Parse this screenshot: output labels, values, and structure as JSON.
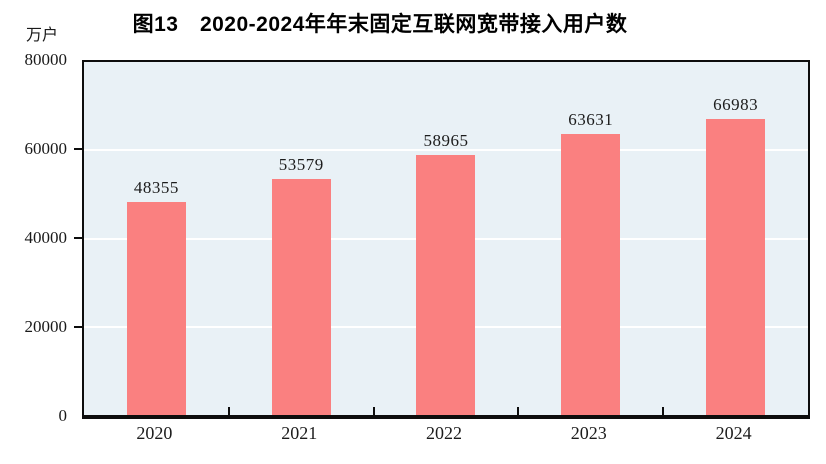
{
  "title": "图13　2020-2024年年末固定互联网宽带接入用户数",
  "unit_label": "万户",
  "colors": {
    "bar": "#FA8080",
    "plot_background": "#E9F1F6",
    "gridline": "#FFFFFF",
    "axis": "#0D0D0D",
    "text": "#1A1A1A"
  },
  "y_axis": {
    "tick_labels": [
      "80000",
      "60000",
      "40000",
      "20000",
      "0"
    ]
  },
  "chart_data": {
    "type": "bar",
    "categories": [
      "2020",
      "2021",
      "2022",
      "2023",
      "2024"
    ],
    "values": [
      48355,
      53579,
      58965,
      63631,
      66983
    ],
    "data_labels": [
      "48355",
      "53579",
      "58965",
      "63631",
      "66983"
    ],
    "title": "图13　2020-2024年年末固定互联网宽带接入用户数",
    "xlabel": "",
    "ylabel": "万户",
    "ylim": [
      0,
      80000
    ],
    "yticks": [
      0,
      20000,
      40000,
      60000,
      80000
    ],
    "grid": true,
    "legend": false,
    "bar_color": "#FA8080"
  }
}
